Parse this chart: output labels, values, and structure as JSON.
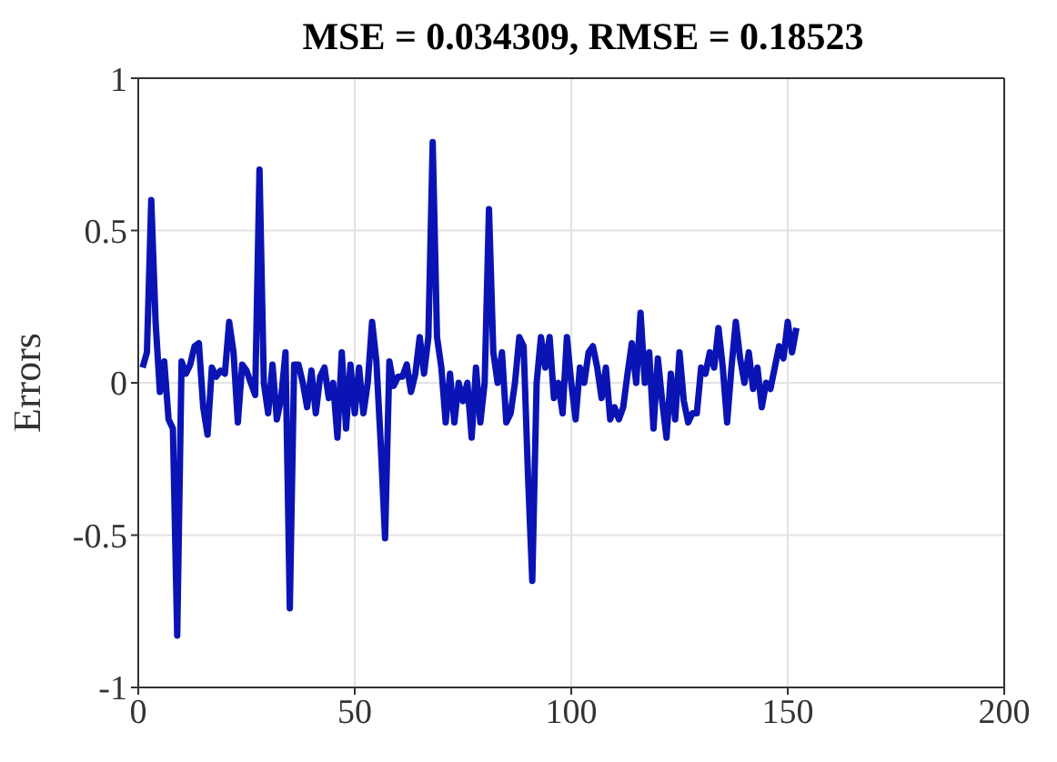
{
  "chart_data": {
    "type": "line",
    "title": "MSE = 0.034309, RMSE = 0.18523",
    "ylabel": "Errors",
    "x": [
      1,
      2,
      3,
      4,
      5,
      6,
      7,
      8,
      9,
      10,
      11,
      12,
      13,
      14,
      15,
      16,
      17,
      18,
      19,
      20,
      21,
      22,
      23,
      24,
      25,
      26,
      27,
      28,
      29,
      30,
      31,
      32,
      33,
      34,
      35,
      36,
      37,
      38,
      39,
      40,
      41,
      42,
      43,
      44,
      45,
      46,
      47,
      48,
      49,
      50,
      51,
      52,
      53,
      54,
      55,
      56,
      57,
      58,
      59,
      60,
      61,
      62,
      63,
      64,
      65,
      66,
      67,
      68,
      69,
      70,
      71,
      72,
      73,
      74,
      75,
      76,
      77,
      78,
      79,
      80,
      81,
      82,
      83,
      84,
      85,
      86,
      87,
      88,
      89,
      90,
      91,
      92,
      93,
      94,
      95,
      96,
      97,
      98,
      99,
      100,
      101,
      102,
      103,
      104,
      105,
      106,
      107,
      108,
      109,
      110,
      111,
      112,
      113,
      114,
      115,
      116,
      117,
      118,
      119,
      120,
      121,
      122,
      123,
      124,
      125,
      126,
      127,
      128,
      129,
      130,
      131,
      132,
      133,
      134,
      135,
      136,
      137,
      138,
      139,
      140,
      141,
      142,
      143,
      144,
      145,
      146,
      147,
      148,
      149,
      150,
      151,
      152
    ],
    "series": [
      {
        "color": "#0a14b4",
        "values": [
          0.05,
          0.1,
          0.6,
          0.2,
          -0.03,
          0.07,
          -0.12,
          -0.15,
          -0.83,
          0.07,
          0.03,
          0.06,
          0.12,
          0.13,
          -0.08,
          -0.17,
          0.05,
          0.02,
          0.04,
          0.03,
          0.2,
          0.1,
          -0.13,
          0.06,
          0.04,
          0.0,
          -0.04,
          0.7,
          0.0,
          -0.1,
          0.06,
          -0.12,
          -0.05,
          0.1,
          -0.74,
          0.06,
          0.06,
          0.0,
          -0.08,
          0.04,
          -0.1,
          0.02,
          0.05,
          -0.05,
          0.0,
          -0.18,
          0.1,
          -0.15,
          0.06,
          -0.1,
          0.05,
          -0.1,
          0.0,
          0.2,
          0.07,
          -0.2,
          -0.51,
          0.07,
          -0.01,
          0.02,
          0.02,
          0.06,
          -0.03,
          0.03,
          0.15,
          0.03,
          0.15,
          0.79,
          0.15,
          0.05,
          -0.13,
          0.03,
          -0.13,
          0.0,
          -0.06,
          0.0,
          -0.18,
          0.05,
          -0.13,
          0.0,
          0.57,
          0.1,
          0.0,
          0.1,
          -0.13,
          -0.1,
          0.0,
          0.15,
          0.12,
          -0.3,
          -0.65,
          0.0,
          0.15,
          0.05,
          0.15,
          -0.05,
          0.0,
          -0.1,
          0.15,
          0.0,
          -0.12,
          0.05,
          0.0,
          0.1,
          0.12,
          0.05,
          -0.05,
          0.05,
          -0.12,
          -0.08,
          -0.12,
          -0.08,
          0.03,
          0.13,
          0.0,
          0.23,
          0.0,
          0.1,
          -0.15,
          0.08,
          -0.06,
          -0.18,
          0.03,
          -0.12,
          0.1,
          -0.06,
          -0.13,
          -0.1,
          -0.1,
          0.05,
          0.03,
          0.1,
          0.05,
          0.18,
          0.05,
          -0.13,
          0.05,
          0.2,
          0.08,
          0.0,
          0.1,
          -0.02,
          0.05,
          -0.08,
          0.0,
          -0.02,
          0.05,
          0.12,
          0.08,
          0.2,
          0.1,
          0.18
        ]
      }
    ],
    "xlim": [
      0,
      200
    ],
    "xticks": [
      0,
      50,
      100,
      150,
      200
    ],
    "ylim": [
      -1,
      1
    ],
    "yticks": [
      -1,
      -0.5,
      0,
      0.5,
      1
    ],
    "grid": true,
    "legend": false,
    "marker": "none",
    "line_style": "solid"
  }
}
